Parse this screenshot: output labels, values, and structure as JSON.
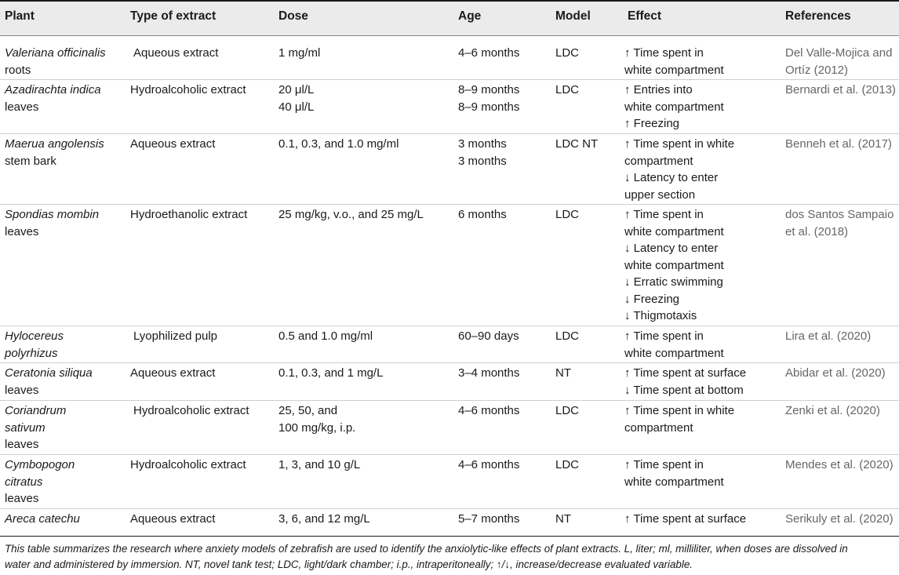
{
  "table": {
    "headers": [
      "Plant",
      "Type of extract",
      "Dose",
      "Age",
      "Model",
      "Effect",
      "References"
    ],
    "rows": [
      {
        "plant_name": [
          "Valeriana officinalis"
        ],
        "plant_part": [
          "roots"
        ],
        "extract": [
          "Aqueous extract"
        ],
        "dose": [
          "1 mg/ml"
        ],
        "age": [
          "4–6 months"
        ],
        "model": [
          "LDC"
        ],
        "effect": [
          "↑ Time spent in",
          "white compartment"
        ],
        "ref": [
          "Del Valle-Mojica and",
          "Ortíz (2012)"
        ]
      },
      {
        "plant_name": [
          "Azadirachta indica"
        ],
        "plant_part": [
          "leaves"
        ],
        "extract": [
          "Hydroalcoholic extract"
        ],
        "dose": [
          "20 μl/L",
          "40 μl/L"
        ],
        "age": [
          "8–9 months",
          "8–9 months"
        ],
        "model": [
          "LDC"
        ],
        "effect": [
          "↑ Entries into",
          "white compartment",
          "↑ Freezing"
        ],
        "ref": [
          "Bernardi et al. (2013)"
        ]
      },
      {
        "plant_name": [
          "Maerua angolensis"
        ],
        "plant_part": [
          "stem bark"
        ],
        "extract": [
          "Aqueous extract"
        ],
        "dose": [
          "0.1, 0.3, and 1.0 mg/ml"
        ],
        "age": [
          "3 months",
          "3 months"
        ],
        "model": [
          "LDC NT"
        ],
        "effect": [
          "↑ Time spent in white",
          "compartment",
          "↓ Latency to enter",
          "upper section"
        ],
        "ref": [
          "Benneh et al. (2017)"
        ]
      },
      {
        "plant_name": [
          "Spondias mombin"
        ],
        "plant_part": [
          "leaves"
        ],
        "extract": [
          "Hydroethanolic extract"
        ],
        "dose": [
          "25 mg/kg, v.o., and 25 mg/L"
        ],
        "age": [
          "6 months"
        ],
        "model": [
          "LDC"
        ],
        "effect": [
          "↑ Time spent in",
          "white compartment",
          "↓ Latency to enter",
          "white compartment",
          "↓ Erratic swimming",
          "↓ Freezing",
          "↓ Thigmotaxis"
        ],
        "ref": [
          "dos Santos Sampaio",
          "et al. (2018)"
        ]
      },
      {
        "plant_name": [
          "Hylocereus",
          "polyrhizus"
        ],
        "plant_part": [],
        "extract": [
          "Lyophilized pulp"
        ],
        "dose": [
          "0.5 and 1.0 mg/ml"
        ],
        "age": [
          "60–90 days"
        ],
        "model": [
          "LDC"
        ],
        "effect": [
          "↑ Time spent in",
          "white compartment"
        ],
        "ref": [
          "Lira et al. (2020)"
        ]
      },
      {
        "plant_name": [
          "Ceratonia siliqua"
        ],
        "plant_part": [
          "leaves"
        ],
        "extract": [
          "Aqueous extract"
        ],
        "dose": [
          "0.1, 0.3, and 1 mg/L"
        ],
        "age": [
          "3–4 months"
        ],
        "model": [
          "NT"
        ],
        "effect": [
          "↑ Time spent at surface",
          "↓ Time spent at bottom"
        ],
        "ref": [
          "Abidar et al. (2020)"
        ]
      },
      {
        "plant_name": [
          "Coriandrum",
          "sativum"
        ],
        "plant_part": [
          "leaves"
        ],
        "extract": [
          "Hydroalcoholic extract"
        ],
        "dose": [
          "25, 50, and",
          "100 mg/kg, i.p."
        ],
        "age": [
          "4–6 months"
        ],
        "model": [
          "LDC"
        ],
        "effect": [
          "↑ Time spent in white",
          "compartment"
        ],
        "ref": [
          "Zenki et al. (2020)"
        ]
      },
      {
        "plant_name": [
          "Cymbopogon",
          "citratus"
        ],
        "plant_part": [
          "leaves"
        ],
        "extract": [
          "Hydroalcoholic extract"
        ],
        "dose": [
          "1, 3, and 10 g/L"
        ],
        "age": [
          "4–6 months"
        ],
        "model": [
          "LDC"
        ],
        "effect": [
          "↑ Time spent in",
          "white compartment"
        ],
        "ref": [
          "Mendes et al. (2020)"
        ]
      },
      {
        "plant_name": [
          "Areca catechu"
        ],
        "plant_part": [],
        "extract": [
          "Aqueous extract"
        ],
        "dose": [
          "3, 6, and 12 mg/L"
        ],
        "age": [
          "5–7 months"
        ],
        "model": [
          "NT"
        ],
        "effect": [
          "↑ Time spent at surface"
        ],
        "ref": [
          "Serikuly et al. (2020)"
        ]
      }
    ]
  },
  "footnote": {
    "lines": [
      "This table summarizes the research where anxiety models of zebrafish are used to identify the anxiolytic-like effects of plant extracts. L, liter; ml, milliliter, when doses are dissolved in",
      "water and administered by immersion. NT, novel tank test; LDC, light/dark chamber; i.p., intraperitoneally; ↑/↓, increase/decrease evaluated variable."
    ]
  },
  "colors": {
    "header_bg": "#ebebeb",
    "reference_text": "#666666",
    "rule": "#1a1a1a"
  }
}
